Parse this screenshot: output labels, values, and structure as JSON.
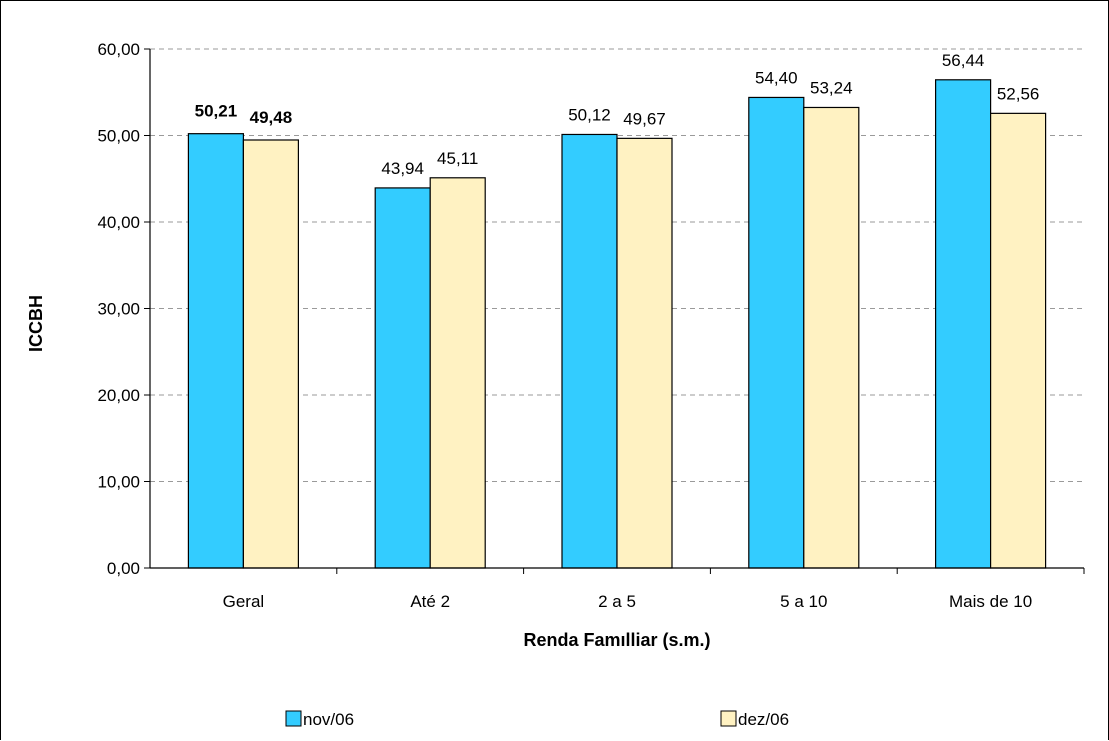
{
  "chart_data": {
    "type": "bar",
    "title": "",
    "xlabel": "Renda Famılliar (s.m.)",
    "ylabel": "ICCBH",
    "categories": [
      "Geral",
      "Até 2",
      "2 a 5",
      "5 a 10",
      "Mais de 10"
    ],
    "series": [
      {
        "name": "nov/06",
        "color": "#33CCFF",
        "values": [
          50.21,
          43.94,
          50.12,
          54.4,
          56.44
        ],
        "labels": [
          "50,21",
          "43,94",
          "50,12",
          "54,40",
          "56,44"
        ]
      },
      {
        "name": "dez/06",
        "color": "#FFF2C2",
        "values": [
          49.48,
          45.11,
          49.67,
          53.24,
          52.56
        ],
        "labels": [
          "49,48",
          "45,11",
          "49,67",
          "53,24",
          "52,56"
        ]
      }
    ],
    "bold_label_categories": [
      "Geral"
    ],
    "ylim": [
      0,
      60
    ],
    "y_ticks": [
      "0,00",
      "10,00",
      "20,00",
      "30,00",
      "40,00",
      "50,00",
      "60,00"
    ],
    "grid": true,
    "legend_position": "bottom"
  }
}
